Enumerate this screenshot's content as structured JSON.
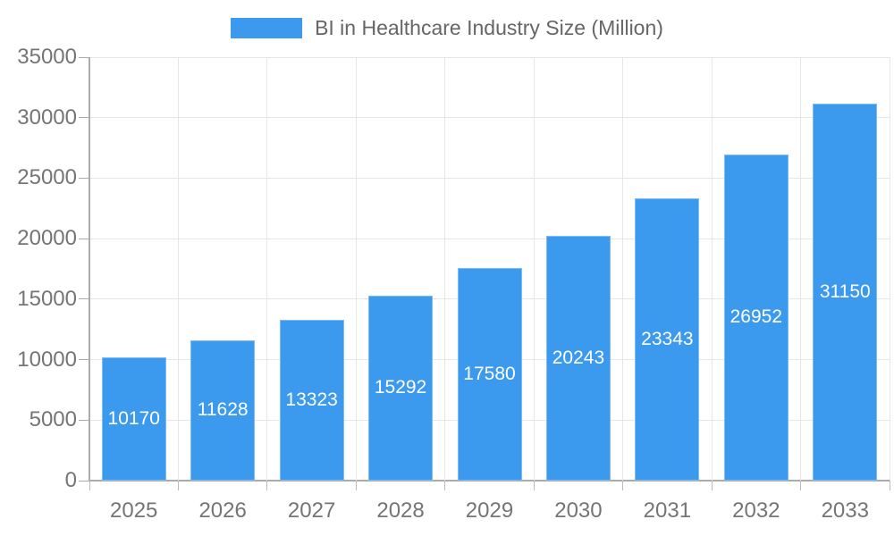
{
  "chart_data": {
    "type": "bar",
    "title": "BI in Healthcare Industry Size (Million)",
    "legend": {
      "position": "top",
      "entries": [
        "BI in Healthcare Industry Size (Million)"
      ]
    },
    "categories": [
      "2025",
      "2026",
      "2027",
      "2028",
      "2029",
      "2030",
      "2031",
      "2032",
      "2033"
    ],
    "values": [
      10170,
      11628,
      13323,
      15292,
      17580,
      20243,
      23343,
      26952,
      31150
    ],
    "value_labels": [
      "10170",
      "11628",
      "13323",
      "15292",
      "17580",
      "20243",
      "23343",
      "26952",
      "31150"
    ],
    "xlabel": "",
    "ylabel": "",
    "ylim": [
      0,
      35000
    ],
    "yticks": [
      0,
      5000,
      10000,
      15000,
      20000,
      25000,
      30000,
      35000
    ],
    "ytick_labels": [
      "0",
      "5000",
      "10000",
      "15000",
      "20000",
      "25000",
      "30000",
      "35000"
    ],
    "grid": true,
    "colors": {
      "bar": "#3B99EE",
      "bar_value_label": "#FFFFFF",
      "axis_line": "#ABABAB",
      "gridline": "#E6E6E6",
      "tick_label": "#757575",
      "legend_text": "#666666",
      "background": "#FFFFFF"
    }
  }
}
